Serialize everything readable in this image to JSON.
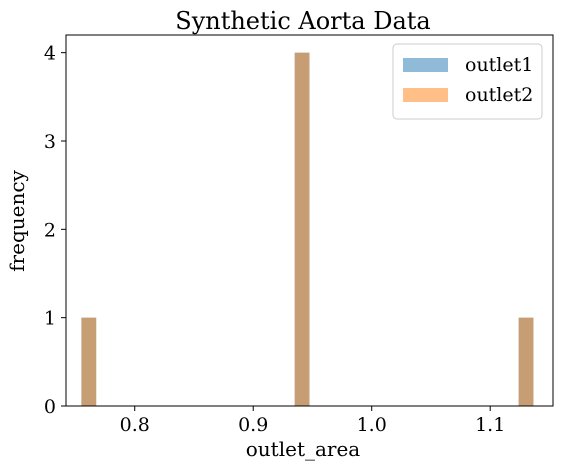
{
  "chart_data": {
    "type": "bar",
    "title": "Synthetic Aorta Data",
    "xlabel": "outlet_area",
    "ylabel": "frequency",
    "xlim": [
      0.742,
      1.153
    ],
    "ylim": [
      0,
      4.2
    ],
    "xticks": [
      0.8,
      0.9,
      1.0,
      1.1
    ],
    "xtick_labels": [
      "0.8",
      "0.9",
      "1.0",
      "1.1"
    ],
    "yticks": [
      0,
      1,
      2,
      3,
      4
    ],
    "ytick_labels": [
      "0",
      "1",
      "2",
      "3",
      "4"
    ],
    "grid": false,
    "legend_position": "top-right",
    "bin_width": 0.0125,
    "series": [
      {
        "name": "outlet1",
        "color": "#1f77b4",
        "alpha": 0.5,
        "bins": [
          {
            "x": 0.755,
            "count": 1
          },
          {
            "x": 0.935,
            "count": 4
          },
          {
            "x": 1.124,
            "count": 1
          }
        ]
      },
      {
        "name": "outlet2",
        "color": "#ff7f0e",
        "alpha": 0.5,
        "bins": [
          {
            "x": 0.755,
            "count": 1
          },
          {
            "x": 0.935,
            "count": 4
          },
          {
            "x": 1.124,
            "count": 1
          }
        ]
      }
    ]
  }
}
